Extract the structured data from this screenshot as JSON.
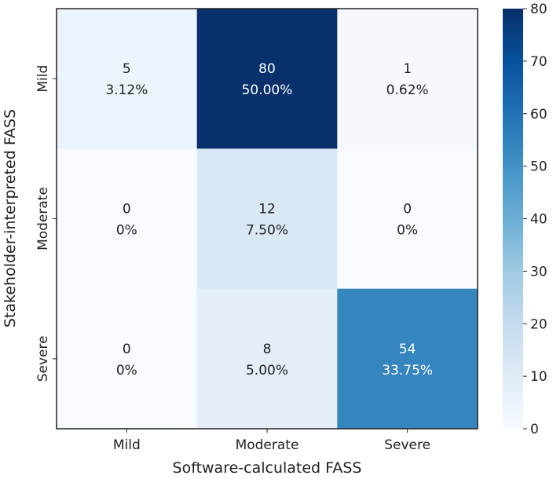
{
  "chart_data": {
    "type": "heatmap",
    "title": "",
    "xlabel": "Software-calculated FASS",
    "ylabel": "Stakeholder-interpreted FASS",
    "x_categories": [
      "Mild",
      "Moderate",
      "Severe"
    ],
    "y_categories": [
      "Mild",
      "Moderate",
      "Severe"
    ],
    "values": [
      [
        5,
        80,
        1
      ],
      [
        0,
        12,
        0
      ],
      [
        0,
        8,
        54
      ]
    ],
    "percent_labels": [
      [
        "3.12%",
        "50.00%",
        "0.62%"
      ],
      [
        "0%",
        "7.50%",
        "0%"
      ],
      [
        "0%",
        "5.00%",
        "33.75%"
      ]
    ],
    "colorbar": {
      "range": [
        0,
        80
      ],
      "ticks": [
        0,
        10,
        20,
        30,
        40,
        50,
        60,
        70,
        80
      ],
      "colormap": "Blues",
      "stops": [
        "#f7fbff",
        "#deebf7",
        "#c6dbef",
        "#9ecae1",
        "#6baed6",
        "#4292c6",
        "#2171b5",
        "#08519c",
        "#08306b"
      ]
    }
  }
}
